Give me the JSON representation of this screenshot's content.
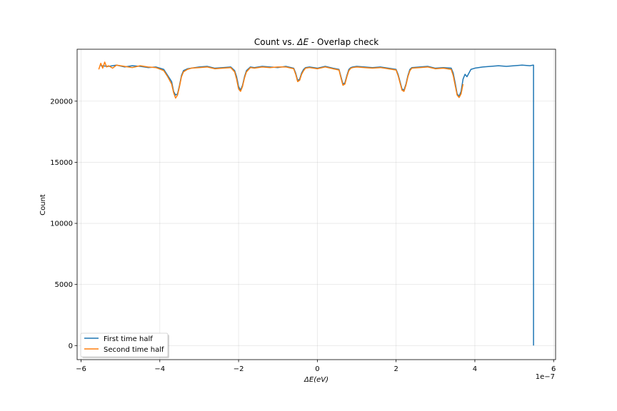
{
  "chart_data": {
    "type": "line",
    "title_prefix": "Count vs. ",
    "title_math": "ΔE",
    "title_suffix": " - Overlap check",
    "xlabel_math": "ΔE",
    "xlabel_unit": "(eV)",
    "ylabel": "Count",
    "x_offset_text": "1e−7",
    "xlim": [
      -6.1,
      6.05
    ],
    "ylim": [
      -1150,
      24250
    ],
    "grid": true,
    "legend_placement": "lower-left",
    "x_ticks": [
      {
        "value": -6,
        "label": "−6"
      },
      {
        "value": -4,
        "label": "−4"
      },
      {
        "value": -2,
        "label": "−2"
      },
      {
        "value": 0,
        "label": "0"
      },
      {
        "value": 2,
        "label": "2"
      },
      {
        "value": 4,
        "label": "4"
      },
      {
        "value": 6,
        "label": "6"
      }
    ],
    "y_ticks": [
      {
        "value": 0,
        "label": "0"
      },
      {
        "value": 5000,
        "label": "5000"
      },
      {
        "value": 10000,
        "label": "10000"
      },
      {
        "value": 15000,
        "label": "15000"
      },
      {
        "value": 20000,
        "label": "20000"
      }
    ],
    "series": [
      {
        "name": "First time half",
        "color": "#1f77b4",
        "x": [
          -5.5,
          -5.3,
          -5.1,
          -4.9,
          -4.7,
          -4.5,
          -4.3,
          -4.1,
          -3.9,
          -3.8,
          -3.7,
          -3.65,
          -3.6,
          -3.55,
          -3.5,
          -3.45,
          -3.4,
          -3.3,
          -3.2,
          -3.0,
          -2.8,
          -2.6,
          -2.4,
          -2.2,
          -2.1,
          -2.05,
          -2.0,
          -1.95,
          -1.9,
          -1.85,
          -1.8,
          -1.7,
          -1.6,
          -1.4,
          -1.2,
          -1.0,
          -0.8,
          -0.6,
          -0.55,
          -0.5,
          -0.45,
          -0.4,
          -0.35,
          -0.3,
          -0.2,
          0.0,
          0.2,
          0.4,
          0.55,
          0.6,
          0.65,
          0.7,
          0.75,
          0.8,
          0.85,
          0.9,
          1.0,
          1.2,
          1.4,
          1.6,
          1.8,
          2.0,
          2.05,
          2.1,
          2.15,
          2.2,
          2.25,
          2.3,
          2.35,
          2.4,
          2.6,
          2.8,
          3.0,
          3.2,
          3.4,
          3.45,
          3.5,
          3.55,
          3.6,
          3.65,
          3.7,
          3.75,
          3.8,
          3.9,
          4.0,
          4.2,
          4.4,
          4.6,
          4.8,
          5.0,
          5.2,
          5.4,
          5.48,
          5.49,
          5.49
        ],
        "y": [
          22900,
          22850,
          22950,
          22800,
          22900,
          22850,
          22750,
          22800,
          22600,
          22100,
          21600,
          20800,
          20500,
          20600,
          21300,
          22100,
          22500,
          22650,
          22700,
          22800,
          22850,
          22700,
          22750,
          22800,
          22500,
          22000,
          21200,
          20900,
          21300,
          22000,
          22500,
          22800,
          22750,
          22850,
          22800,
          22750,
          22850,
          22700,
          22300,
          21700,
          21800,
          22300,
          22600,
          22750,
          22800,
          22700,
          22850,
          22700,
          22600,
          22000,
          21400,
          21500,
          22100,
          22600,
          22750,
          22800,
          22850,
          22800,
          22750,
          22800,
          22700,
          22600,
          22200,
          21600,
          21000,
          20900,
          21400,
          22100,
          22600,
          22750,
          22800,
          22850,
          22700,
          22750,
          22700,
          22300,
          21500,
          20600,
          20400,
          20800,
          21800,
          22200,
          22000,
          22600,
          22700,
          22800,
          22850,
          22900,
          22850,
          22900,
          22950,
          22900,
          22950,
          22950,
          0
        ]
      },
      {
        "name": "Second time half",
        "color": "#ff7f0e",
        "x": [
          -5.55,
          -5.5,
          -5.45,
          -5.4,
          -5.35,
          -5.3,
          -5.2,
          -5.1,
          -4.9,
          -4.7,
          -4.5,
          -4.3,
          -4.1,
          -3.9,
          -3.8,
          -3.7,
          -3.65,
          -3.6,
          -3.55,
          -3.5,
          -3.45,
          -3.4,
          -3.3,
          -3.2,
          -3.0,
          -2.8,
          -2.6,
          -2.4,
          -2.2,
          -2.1,
          -2.05,
          -2.0,
          -1.95,
          -1.9,
          -1.85,
          -1.8,
          -1.7,
          -1.6,
          -1.4,
          -1.2,
          -1.0,
          -0.8,
          -0.6,
          -0.55,
          -0.5,
          -0.45,
          -0.4,
          -0.35,
          -0.3,
          -0.2,
          0.0,
          0.2,
          0.4,
          0.55,
          0.6,
          0.65,
          0.7,
          0.75,
          0.8,
          0.85,
          0.9,
          1.0,
          1.2,
          1.4,
          1.6,
          1.8,
          2.0,
          2.05,
          2.1,
          2.15,
          2.2,
          2.25,
          2.3,
          2.35,
          2.4,
          2.6,
          2.8,
          3.0,
          3.2,
          3.4,
          3.45,
          3.5,
          3.55,
          3.6,
          3.65,
          3.7
        ],
        "y": [
          22600,
          23100,
          22700,
          23200,
          22800,
          22900,
          22700,
          22950,
          22850,
          22750,
          22900,
          22800,
          22750,
          22500,
          22000,
          21400,
          20700,
          20250,
          20500,
          21200,
          22000,
          22400,
          22600,
          22700,
          22750,
          22800,
          22650,
          22700,
          22750,
          22400,
          21800,
          21000,
          20800,
          21200,
          21900,
          22400,
          22750,
          22700,
          22800,
          22750,
          22800,
          22800,
          22650,
          22200,
          21600,
          21700,
          22200,
          22500,
          22700,
          22750,
          22650,
          22800,
          22650,
          22550,
          21900,
          21300,
          21400,
          22000,
          22500,
          22700,
          22750,
          22800,
          22750,
          22700,
          22750,
          22650,
          22550,
          22100,
          21500,
          20900,
          20800,
          21300,
          22000,
          22500,
          22700,
          22750,
          22800,
          22650,
          22700,
          22600,
          22100,
          21300,
          20500,
          20300,
          20600,
          21400
        ]
      }
    ]
  }
}
